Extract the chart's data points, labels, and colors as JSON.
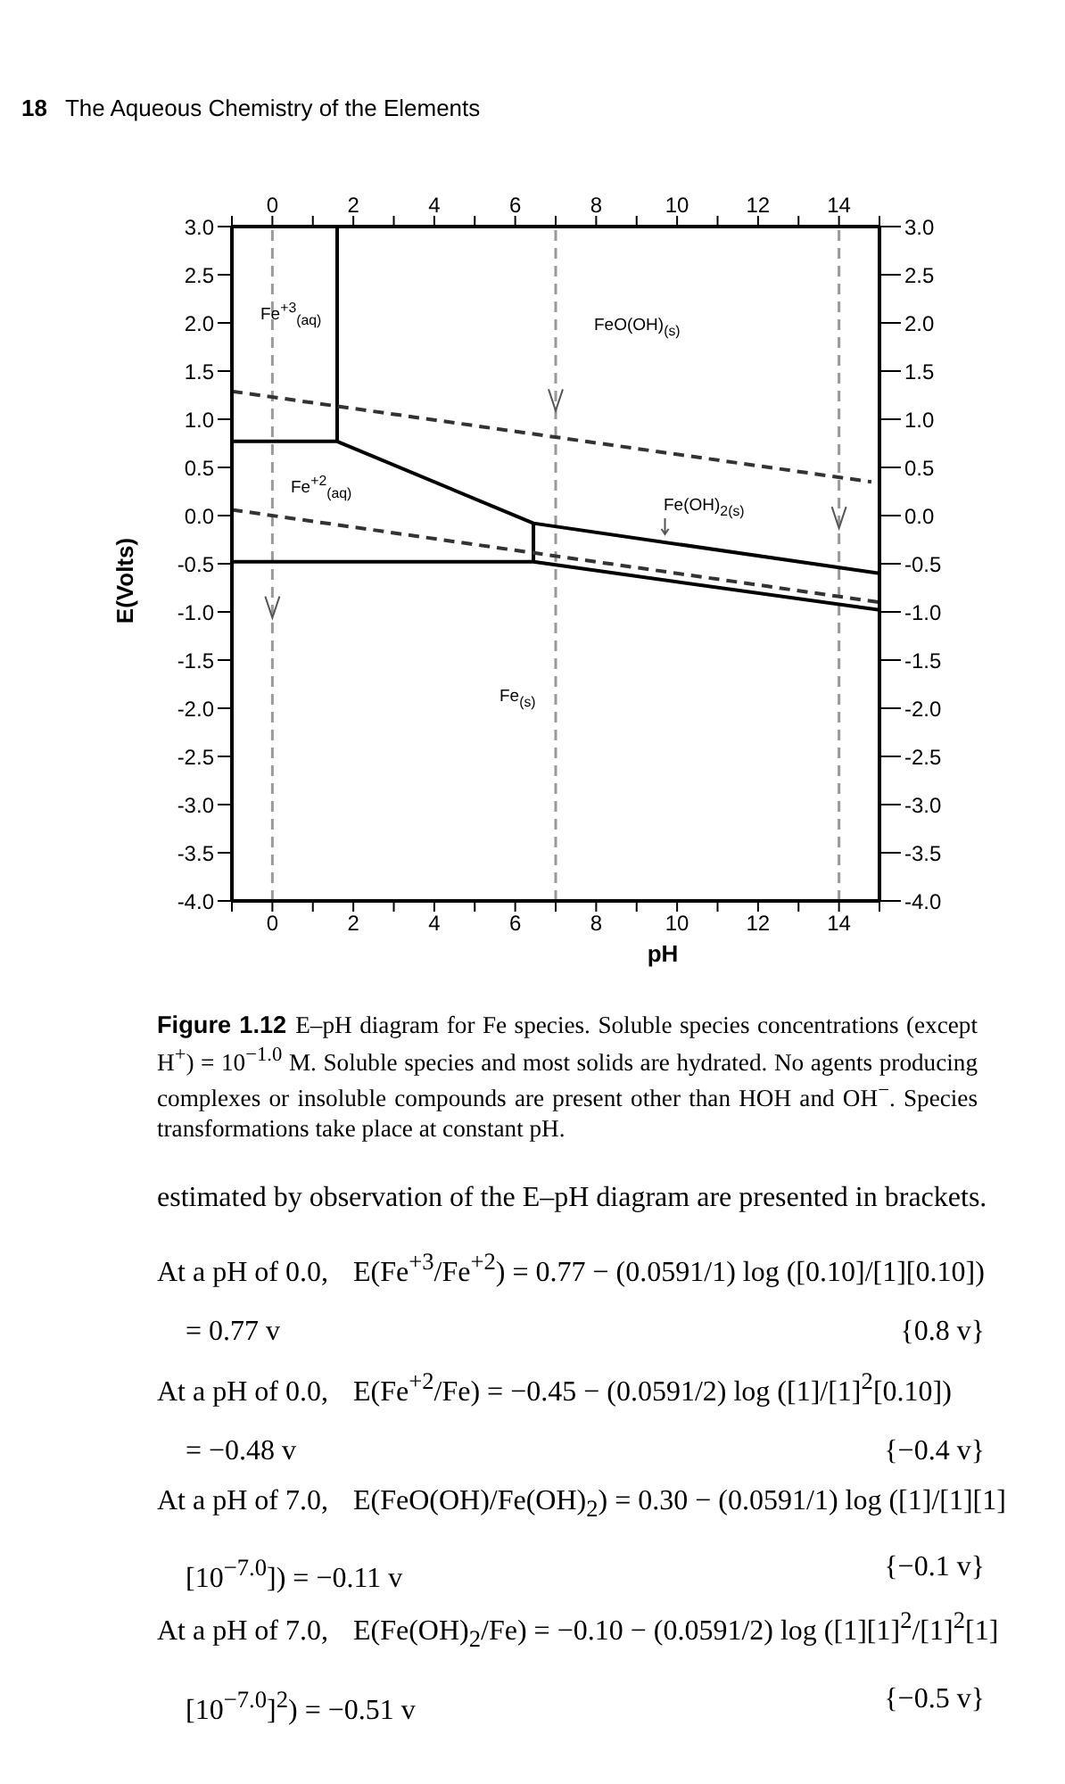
{
  "chart_data": {
    "type": "line",
    "xlabel": "pH",
    "ylabel": "E(Volts)",
    "xlim": [
      -1,
      15
    ],
    "xticks": [
      {
        "value": -1,
        "label": null
      },
      0,
      {
        "value": 1,
        "label": null
      },
      2,
      {
        "value": 3,
        "label": null
      },
      4,
      {
        "value": 5,
        "label": null
      },
      6,
      {
        "value": 7,
        "label": null
      },
      8,
      {
        "value": 9,
        "label": null
      },
      10,
      {
        "value": 11,
        "label": null
      },
      12,
      {
        "value": 13,
        "label": null
      },
      14,
      {
        "value": 15,
        "label": null
      }
    ],
    "x2lim": [
      -1,
      15
    ],
    "x2ticks": [
      {
        "value": -1,
        "label": null
      },
      0,
      {
        "value": 1,
        "label": null
      },
      2,
      {
        "value": 3,
        "label": null
      },
      4,
      {
        "value": 5,
        "label": null
      },
      6,
      {
        "value": 7,
        "label": null
      },
      8,
      {
        "value": 9,
        "label": null
      },
      10,
      {
        "value": 11,
        "label": null
      },
      12,
      {
        "value": 13,
        "label": null
      },
      14,
      {
        "value": 15,
        "label": null
      }
    ],
    "ylim": [
      -4,
      3
    ],
    "yticks": [
      {
        "value": 3,
        "label": "3.0"
      },
      2.5,
      {
        "value": 2,
        "label": "2.0"
      },
      1.5,
      {
        "value": 1,
        "label": "1.0"
      },
      0.5,
      {
        "value": 0,
        "label": "0.0"
      },
      -0.5,
      {
        "value": -1,
        "label": "-1.0"
      },
      -1.5,
      {
        "value": -2,
        "label": "-2.0"
      },
      -2.5,
      {
        "value": -3,
        "label": "-3.0"
      },
      -3.5,
      {
        "value": -4,
        "label": "-4.0"
      }
    ],
    "y2lim": [
      -4,
      3
    ],
    "y2ticks": [
      {
        "value": 3,
        "label": "3.0"
      },
      2.5,
      {
        "value": 2,
        "label": "2.0"
      },
      1.5,
      {
        "value": 1,
        "label": "1.0"
      },
      0.5,
      {
        "value": 0,
        "label": "0.0"
      },
      -0.5,
      {
        "value": -1,
        "label": "-1.0"
      },
      -1.5,
      {
        "value": -2,
        "label": "-2.0"
      },
      -2.5,
      {
        "value": -3,
        "label": "-3.0"
      },
      -3.5,
      {
        "value": -4,
        "label": "-4.0"
      }
    ],
    "marker": "none",
    "series": [
      {
        "color": "#000000",
        "x": [
          1.6,
          1.6
        ],
        "values": [
          0.77,
          3.0
        ]
      },
      {
        "color": "#000000",
        "x": [
          -1,
          1.6,
          6.45,
          15
        ],
        "values": [
          0.77,
          0.77,
          -0.08,
          -0.6
        ]
      },
      {
        "color": "#000000",
        "x": [
          6.45,
          6.45
        ],
        "values": [
          -0.08,
          -0.48
        ]
      },
      {
        "color": "#000000",
        "x": [
          -1,
          6.45,
          15
        ],
        "values": [
          -0.48,
          -0.48,
          -0.98
        ]
      },
      {
        "color": "#333333",
        "line_style": "dashed",
        "x": [
          -1,
          14.8
        ],
        "values": [
          1.29,
          0.35
        ]
      },
      {
        "color": "#333333",
        "line_style": "dashed",
        "x": [
          -1,
          15
        ],
        "values": [
          0.06,
          -0.9
        ]
      }
    ],
    "ref_lines": [
      {
        "axis": "x",
        "value": 0,
        "color": "#999999",
        "line_style": "dashed"
      },
      {
        "axis": "x",
        "value": 7,
        "color": "#999999",
        "line_style": "dashed"
      },
      {
        "axis": "x",
        "value": 14,
        "color": "#999999",
        "line_style": "dashed"
      }
    ],
    "annotations": [
      "Fe$^{+3}$$_{(aq)}$",
      "FeO(OH)$_{(s)}$",
      "Fe$^{+2}$$_{(aq)}$",
      "Fe(OH)$_{2(s)}$",
      "Fe$_{(s)}$",
      "18",
      "The Aqueous Chemistry of the Elements",
      "Figure 1.12",
      "E–pH diagram for Fe species. Soluble species concentrations (except H$^{+}$) = 10$^{−1.0}$ M. Soluble species and most solids are hydrated. No agents producing complexes or insoluble compounds are present other than HOH and OH$^{−}$. Species transformations take place at constant pH.",
      "estimated by observation of the E–pH diagram are presented in brackets.",
      "At a pH of 0.0,",
      "E(Fe$^{+3}$/Fe$^{+2}$) = 0.77 − (0.0591/1) log ([0.10]/[1][0.10])",
      "= 0.77 v",
      "{0.8 v}",
      "At a pH of 0.0,",
      "E(Fe$^{+2}$/Fe) = −0.45 − (0.0591/2) log ([1]/[1]$^{2}$[0.10])",
      "= −0.48 v",
      "{−0.4 v}",
      "At a pH of 7.0,",
      "E(FeO(OH)/Fe(OH)$_{2}$) = 0.30 − (0.0591/1) log ([1]/[1][1]",
      "[10$^{−7.0}$]) = −0.11 v",
      "{−0.1 v}",
      "At a pH of 7.0,",
      "E(Fe(OH)$_{2}$/Fe) = −0.10 − (0.0591/2) log ([1][1]$^{2}$/[1]$^{2}$[1]",
      "[10$^{−7.0}$]$^{2}$) = −0.51 v",
      "{−0.5 v}"
    ]
  }
}
